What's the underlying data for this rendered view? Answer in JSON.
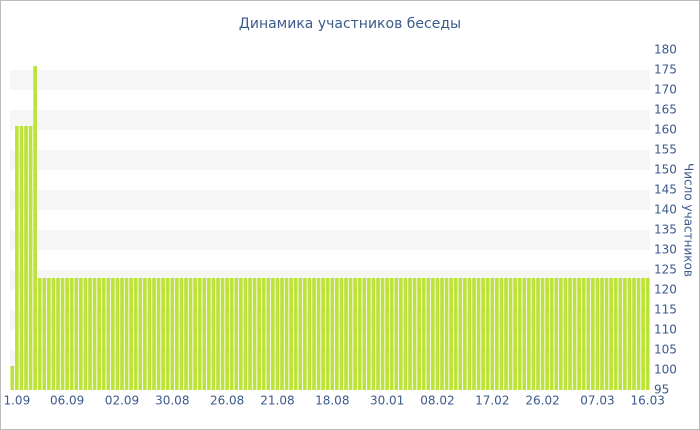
{
  "chart_data": {
    "type": "bar",
    "title": "Динамика участников беседы",
    "y_label": "Число участников",
    "color": "#bde33a",
    "ylim": [
      95,
      180
    ],
    "yticks": [
      95,
      100,
      105,
      110,
      115,
      120,
      125,
      130,
      135,
      140,
      145,
      150,
      155,
      160,
      165,
      170,
      175,
      180
    ],
    "banded_grid": true,
    "y_axis_side": "right",
    "categories": [
      null,
      "1.09",
      null,
      null,
      null,
      null,
      null,
      null,
      null,
      null,
      null,
      null,
      "06.09",
      null,
      null,
      null,
      null,
      null,
      null,
      null,
      null,
      null,
      null,
      null,
      "02.09",
      null,
      null,
      null,
      null,
      null,
      null,
      null,
      null,
      null,
      null,
      "30.08",
      null,
      null,
      null,
      null,
      null,
      null,
      null,
      null,
      null,
      null,
      null,
      "26.08",
      null,
      null,
      null,
      null,
      null,
      null,
      null,
      null,
      null,
      null,
      "21.08",
      null,
      null,
      null,
      null,
      null,
      null,
      null,
      null,
      null,
      null,
      null,
      "18.08",
      null,
      null,
      null,
      null,
      null,
      null,
      null,
      null,
      null,
      null,
      null,
      "30.01",
      null,
      null,
      null,
      null,
      null,
      null,
      null,
      null,
      null,
      null,
      "08.02",
      null,
      null,
      null,
      null,
      null,
      null,
      null,
      null,
      null,
      null,
      null,
      "17.02",
      null,
      null,
      null,
      null,
      null,
      null,
      null,
      null,
      null,
      null,
      "26.02",
      null,
      null,
      null,
      null,
      null,
      null,
      null,
      null,
      null,
      null,
      null,
      "07.03",
      null,
      null,
      null,
      null,
      null,
      null,
      null,
      null,
      null,
      null,
      "16.03"
    ],
    "values": [
      101,
      161,
      161,
      161,
      161,
      176,
      123,
      123,
      123,
      123,
      123,
      123,
      123,
      123,
      123,
      123,
      123,
      123,
      123,
      123,
      123,
      123,
      123,
      123,
      123,
      123,
      123,
      123,
      123,
      123,
      123,
      123,
      123,
      123,
      123,
      123,
      123,
      123,
      123,
      123,
      123,
      123,
      123,
      123,
      123,
      123,
      123,
      123,
      123,
      123,
      123,
      123,
      123,
      123,
      123,
      123,
      123,
      123,
      123,
      123,
      123,
      123,
      123,
      123,
      123,
      123,
      123,
      123,
      123,
      123,
      123,
      123,
      123,
      123,
      123,
      123,
      123,
      123,
      123,
      123,
      123,
      123,
      123,
      123,
      123,
      123,
      123,
      123,
      123,
      123,
      123,
      123,
      123,
      123,
      123,
      123,
      123,
      123,
      123,
      123,
      123,
      123,
      123,
      123,
      123,
      123,
      123,
      123,
      123,
      123,
      123,
      123,
      123,
      123,
      123,
      123,
      123,
      123,
      123,
      123,
      123,
      123,
      123,
      123,
      123,
      123,
      123,
      123,
      123,
      123,
      123,
      123,
      123,
      123,
      123,
      123,
      123,
      123,
      123,
      123
    ]
  }
}
